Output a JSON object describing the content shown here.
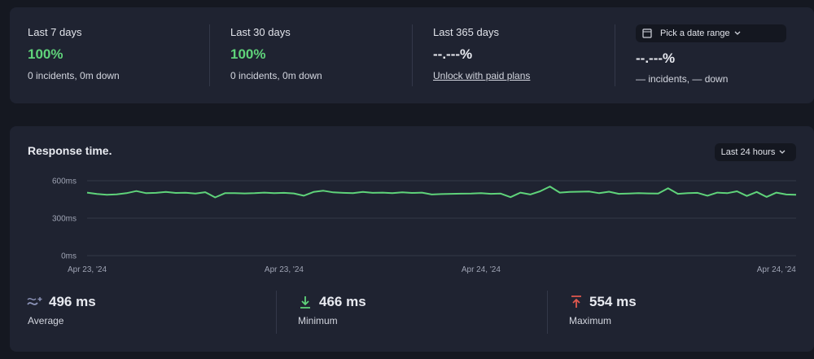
{
  "stats": [
    {
      "label": "Last 7 days",
      "value": "100%",
      "detail": "0 incidents, 0m down"
    },
    {
      "label": "Last 30 days",
      "value": "100%",
      "detail": "0 incidents, 0m down"
    },
    {
      "label": "Last 365 days",
      "value": "--.---%",
      "link": "Unlock with paid plans"
    },
    {
      "button": "Pick a date range",
      "value": "--.---%",
      "detail": "— incidents, — down"
    }
  ],
  "response": {
    "title": "Response time.",
    "range_button": "Last 24 hours",
    "summary": [
      {
        "value": "496 ms",
        "label": "Average"
      },
      {
        "value": "466 ms",
        "label": "Minimum"
      },
      {
        "value": "554 ms",
        "label": "Maximum"
      }
    ]
  },
  "chart_data": {
    "type": "line",
    "categories": [
      "Apr 23, '24",
      null,
      null,
      null,
      null,
      null,
      null,
      null,
      null,
      null,
      null,
      null,
      null,
      null,
      null,
      null,
      null,
      null,
      null,
      null,
      "Apr 23, '24",
      null,
      null,
      null,
      null,
      null,
      null,
      null,
      null,
      null,
      null,
      null,
      null,
      null,
      null,
      null,
      null,
      null,
      null,
      null,
      "Apr 24, '24",
      null,
      null,
      null,
      null,
      null,
      null,
      null,
      null,
      null,
      null,
      null,
      null,
      null,
      null,
      null,
      null,
      null,
      null,
      null,
      null,
      null,
      null,
      null,
      null,
      null,
      null,
      null,
      null,
      null,
      "Apr 24, '24",
      null,
      null
    ],
    "series": [
      {
        "name": "Response time",
        "color": "#5fd37a",
        "values": [
          505,
          494,
          488,
          491,
          500,
          517,
          500,
          503,
          510,
          502,
          504,
          497,
          508,
          466,
          500,
          501,
          498,
          500,
          505,
          500,
          503,
          498,
          480,
          510,
          520,
          507,
          503,
          500,
          510,
          503,
          505,
          500,
          507,
          502,
          505,
          490,
          493,
          495,
          496,
          497,
          500,
          495,
          497,
          468,
          505,
          490,
          515,
          554,
          505,
          510,
          512,
          513,
          500,
          512,
          495,
          497,
          500,
          498,
          497,
          540,
          495,
          500,
          503,
          480,
          505,
          500,
          515,
          478,
          510,
          470,
          505,
          490,
          488
        ]
      }
    ],
    "ylim": [
      0,
      600
    ],
    "yticks": [
      {
        "value": 0,
        "label": "0ms"
      },
      {
        "value": 300,
        "label": "300ms"
      },
      {
        "value": 600,
        "label": "600ms"
      }
    ],
    "grid": true
  }
}
